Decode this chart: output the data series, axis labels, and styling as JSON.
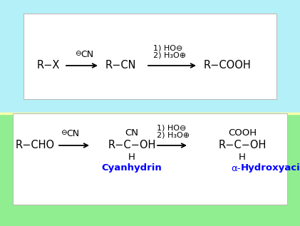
{
  "bg_top": "#b3f0f7",
  "bg_bottom": "#90ee90",
  "box1_color": "#ffffff",
  "box2_color": "#ffffff",
  "reaction1": {
    "reactant": "R−X",
    "reagent1_sub": "⊖",
    "reagent1_main": "CN",
    "intermediate": "R−CN",
    "reagent2_line1": "1) HO⊖",
    "reagent2_line2": "2) H₃O⊕",
    "product": "R−COOH"
  },
  "reaction2": {
    "reactant": "R−CHO",
    "reagent1_sub": "⊖",
    "reagent1_main": "CN",
    "intermediate_top": "CN",
    "intermediate_mid": "R−C−OH",
    "intermediate_bot": "H",
    "reagent2_line1": "1) HO⊖",
    "reagent2_line2": "2) H₃O⊕",
    "product_top": "COOH",
    "product_mid": "R−C−OH",
    "product_bot": "H",
    "label1": "Cyanhydrin",
    "label2_plain": "α‐",
    "label2_bold": "Hydroxyacid"
  }
}
